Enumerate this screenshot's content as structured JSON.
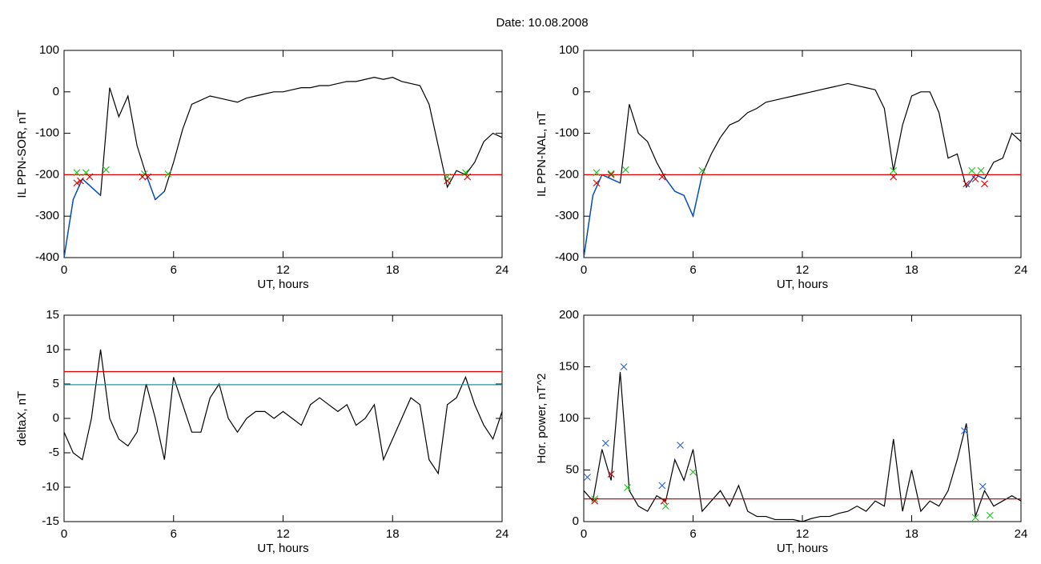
{
  "title": "Date:  10.08.2008",
  "chart_data": [
    {
      "type": "line",
      "ylabel": "IL PPN-SOR, nT",
      "xlabel": "UT, hours",
      "xlim": [
        0,
        24
      ],
      "xticks": [
        0,
        6,
        12,
        18,
        24
      ],
      "ylim": [
        -400,
        100
      ],
      "yticks": [
        -400,
        -300,
        -200,
        -100,
        0,
        100
      ],
      "color": "#000000",
      "below_color": "#0050c8",
      "threshold": -200,
      "x": [
        0,
        0.5,
        1,
        1.5,
        2,
        2.5,
        3,
        3.5,
        4,
        4.5,
        5,
        5.5,
        6,
        6.5,
        7,
        7.5,
        8,
        8.5,
        9,
        9.5,
        10,
        10.5,
        11,
        11.5,
        12,
        12.5,
        13,
        13.5,
        14,
        14.5,
        15,
        15.5,
        16,
        16.5,
        17,
        17.5,
        18,
        18.5,
        19,
        19.5,
        20,
        20.5,
        21,
        21.5,
        22,
        22.5,
        23,
        23.5,
        24
      ],
      "values": [
        -400,
        -260,
        -210,
        -230,
        -250,
        10,
        -60,
        -10,
        -130,
        -200,
        -260,
        -240,
        -170,
        -90,
        -30,
        -20,
        -10,
        -15,
        -20,
        -25,
        -15,
        -10,
        -5,
        0,
        0,
        5,
        10,
        10,
        15,
        15,
        20,
        25,
        25,
        30,
        35,
        30,
        35,
        25,
        20,
        15,
        -30,
        -130,
        -230,
        -190,
        -200,
        -170,
        -120,
        -100,
        -110
      ],
      "hlines": [
        {
          "value": -200,
          "color": "#e00000"
        }
      ],
      "markers": [
        {
          "color": "#20c020",
          "x": [
            0.7,
            1.2,
            2.3,
            4.4,
            5.7,
            21,
            22
          ],
          "y": [
            -195,
            -195,
            -188,
            -198,
            -198,
            -205,
            -195
          ]
        },
        {
          "color": "#d00000",
          "x": [
            0.7,
            0.9,
            1.4,
            4.3,
            4.6,
            21,
            22.1
          ],
          "y": [
            -220,
            -215,
            -205,
            -205,
            -205,
            -215,
            -205
          ]
        }
      ]
    },
    {
      "type": "line",
      "ylabel": "IL PPN-NAL, nT",
      "xlabel": "UT, hours",
      "xlim": [
        0,
        24
      ],
      "xticks": [
        0,
        6,
        12,
        18,
        24
      ],
      "ylim": [
        -400,
        100
      ],
      "yticks": [
        -400,
        -300,
        -200,
        -100,
        0,
        100
      ],
      "color": "#000000",
      "below_color": "#0050c8",
      "threshold": -200,
      "x": [
        0,
        0.5,
        1,
        1.5,
        2,
        2.5,
        3,
        3.5,
        4,
        4.5,
        5,
        5.5,
        6,
        6.5,
        7,
        7.5,
        8,
        8.5,
        9,
        9.5,
        10,
        10.5,
        11,
        11.5,
        12,
        12.5,
        13,
        13.5,
        14,
        14.5,
        15,
        15.5,
        16,
        16.5,
        17,
        17.5,
        18,
        18.5,
        19,
        19.5,
        20,
        20.5,
        21,
        21.5,
        22,
        22.5,
        23,
        23.5,
        24
      ],
      "values": [
        -400,
        -250,
        -200,
        -210,
        -220,
        -30,
        -100,
        -120,
        -170,
        -210,
        -240,
        -250,
        -300,
        -200,
        -150,
        -110,
        -80,
        -70,
        -50,
        -40,
        -25,
        -20,
        -15,
        -10,
        -5,
        0,
        5,
        10,
        15,
        20,
        15,
        10,
        5,
        -40,
        -190,
        -80,
        -10,
        0,
        0,
        -50,
        -160,
        -150,
        -230,
        -200,
        -210,
        -170,
        -160,
        -100,
        -120
      ],
      "hlines": [
        {
          "value": -200,
          "color": "#e00000"
        }
      ],
      "markers": [
        {
          "color": "#20c020",
          "x": [
            0.7,
            1.5,
            2.3,
            6.5,
            17,
            21.3,
            21.8
          ],
          "y": [
            -195,
            -197,
            -188,
            -190,
            -190,
            -190,
            -190
          ]
        },
        {
          "color": "#d00000",
          "x": [
            0.7,
            1.5,
            4.3,
            17,
            21,
            21.5,
            22
          ],
          "y": [
            -220,
            -200,
            -205,
            -205,
            -222,
            -210,
            -222
          ]
        }
      ]
    },
    {
      "type": "line",
      "ylabel": "deltaX, nT",
      "xlabel": "UT, hours",
      "xlim": [
        0,
        24
      ],
      "xticks": [
        0,
        6,
        12,
        18,
        24
      ],
      "ylim": [
        -15,
        15
      ],
      "yticks": [
        -15,
        -10,
        -5,
        0,
        5,
        10,
        15
      ],
      "color": "#000000",
      "x": [
        0,
        0.5,
        1,
        1.5,
        2,
        2.5,
        3,
        3.5,
        4,
        4.5,
        5,
        5.5,
        6,
        6.5,
        7,
        7.5,
        8,
        8.5,
        9,
        9.5,
        10,
        10.5,
        11,
        11.5,
        12,
        12.5,
        13,
        13.5,
        14,
        14.5,
        15,
        15.5,
        16,
        16.5,
        17,
        17.5,
        18,
        18.5,
        19,
        19.5,
        20,
        20.5,
        21,
        21.5,
        22,
        22.5,
        23,
        23.5,
        24
      ],
      "values": [
        -2,
        -5,
        -6,
        0,
        10,
        0,
        -3,
        -4,
        -2,
        5,
        0,
        -6,
        6,
        2,
        -2,
        -2,
        3,
        5,
        0,
        -2,
        0,
        1,
        1,
        0,
        1,
        0,
        -1,
        2,
        3,
        2,
        1,
        2,
        -1,
        0,
        2,
        -6,
        -3,
        0,
        3,
        2,
        -6,
        -8,
        2,
        3,
        6,
        2,
        -1,
        -3,
        1
      ],
      "hlines": [
        {
          "value": 6.8,
          "color": "#e00000"
        },
        {
          "value": 4.9,
          "color": "#2a8fa0"
        }
      ],
      "markers": []
    },
    {
      "type": "line",
      "ylabel": "Hor. power, nT^2",
      "xlabel": "UT, hours",
      "xlim": [
        0,
        24
      ],
      "xticks": [
        0,
        6,
        12,
        18,
        24
      ],
      "ylim": [
        0,
        200
      ],
      "yticks": [
        0,
        50,
        100,
        150,
        200
      ],
      "color": "#000000",
      "x": [
        0,
        0.5,
        1,
        1.5,
        2,
        2.5,
        3,
        3.5,
        4,
        4.5,
        5,
        5.5,
        6,
        6.5,
        7,
        7.5,
        8,
        8.5,
        9,
        9.5,
        10,
        10.5,
        11,
        11.5,
        12,
        12.5,
        13,
        13.5,
        14,
        14.5,
        15,
        15.5,
        16,
        16.5,
        17,
        17.5,
        18,
        18.5,
        19,
        19.5,
        20,
        20.5,
        21,
        21.5,
        22,
        22.5,
        23,
        23.5,
        24
      ],
      "values": [
        30,
        20,
        70,
        40,
        145,
        30,
        15,
        10,
        25,
        20,
        60,
        40,
        70,
        10,
        20,
        30,
        15,
        35,
        10,
        5,
        5,
        2,
        2,
        2,
        0,
        3,
        5,
        5,
        8,
        10,
        15,
        10,
        20,
        15,
        80,
        10,
        50,
        10,
        20,
        15,
        30,
        60,
        95,
        5,
        30,
        15,
        20,
        25,
        20
      ],
      "hlines": [
        {
          "value": 22,
          "color": "#e00000"
        }
      ],
      "markers": [
        {
          "color": "#2060e0",
          "x": [
            0.2,
            1.2,
            2.2,
            4.3,
            5.3,
            20.9,
            21.9
          ],
          "y": [
            43,
            76,
            150,
            35,
            74,
            88,
            34
          ]
        },
        {
          "color": "#20c020",
          "x": [
            0.6,
            2.4,
            4.5,
            6,
            21.5,
            22.3
          ],
          "y": [
            22,
            33,
            15,
            48,
            4,
            6
          ]
        },
        {
          "color": "#d00000",
          "x": [
            0.6,
            1.5,
            4.4
          ],
          "y": [
            20,
            46,
            20
          ]
        }
      ]
    }
  ]
}
